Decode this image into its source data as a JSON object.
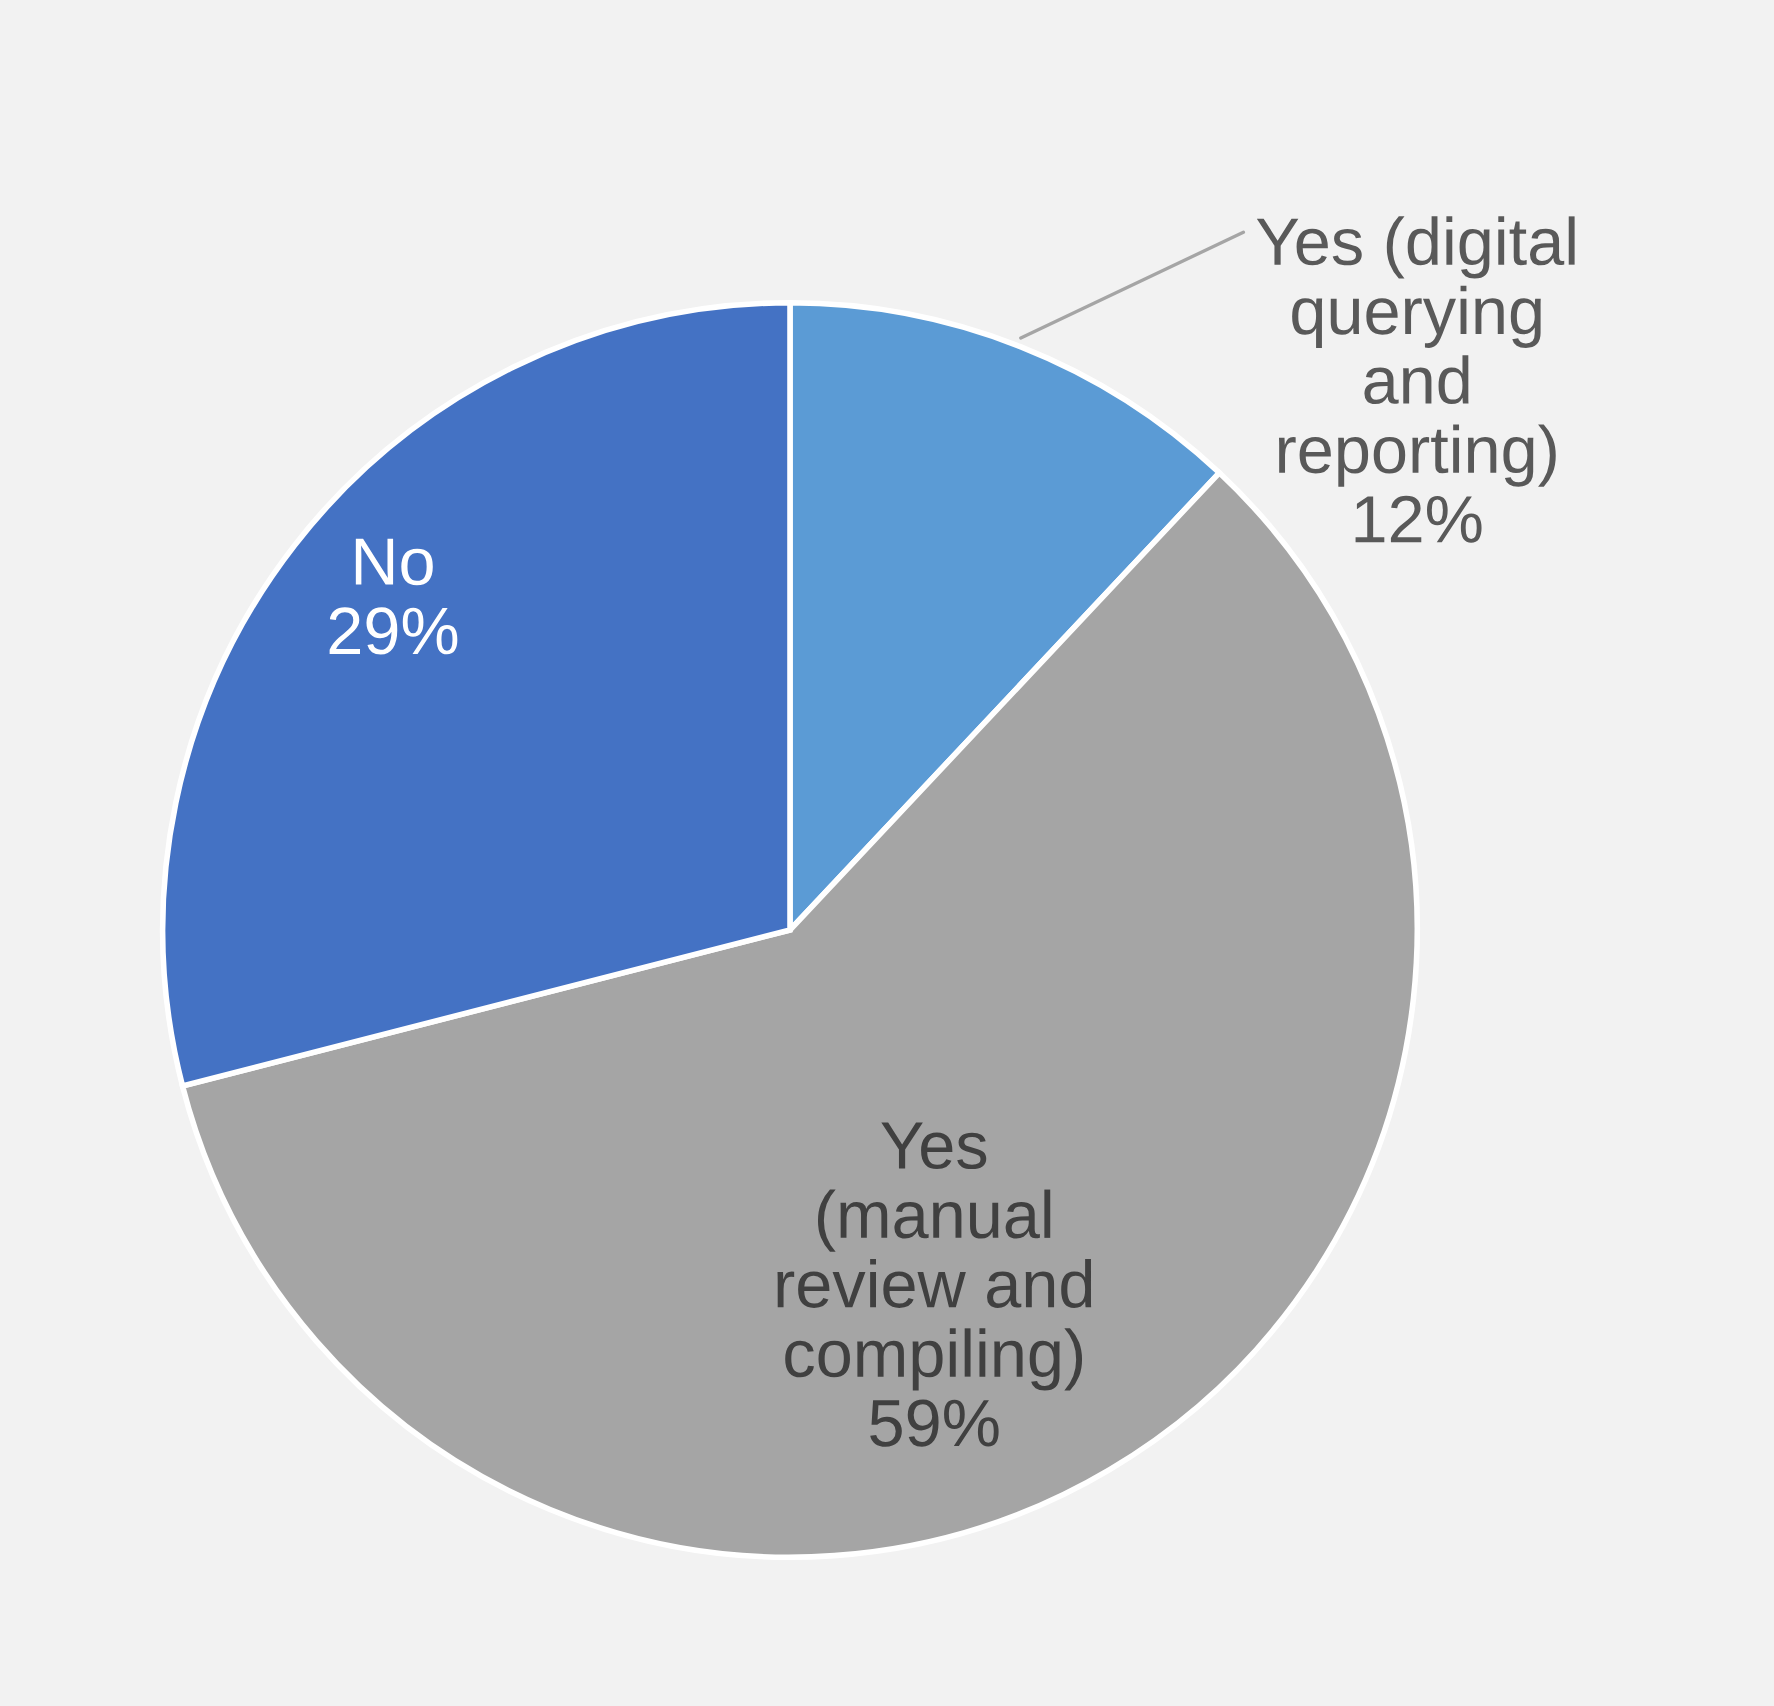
{
  "chart_data": {
    "type": "pie",
    "categories": [
      "Yes (digital\nquerying\nand\nreporting)",
      "Yes\n(manual\nreview and\ncompiling)",
      "No"
    ],
    "values": [
      12,
      59,
      29
    ],
    "value_labels": [
      "12%",
      "59%",
      "29%"
    ],
    "colors": [
      "#5b9bd5",
      "#a5a5a5",
      "#4472c4"
    ]
  }
}
